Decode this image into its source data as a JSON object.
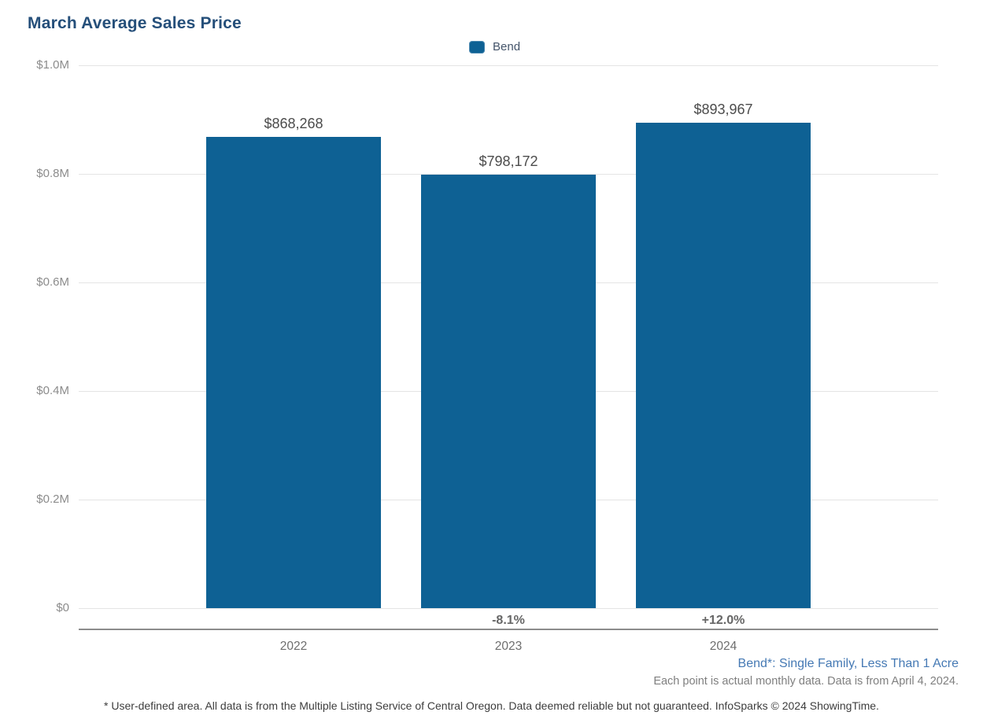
{
  "title": "March Average Sales Price",
  "legend": {
    "label": "Bend",
    "color": "#0e6194"
  },
  "chart_data": {
    "type": "bar",
    "title": "March Average Sales Price",
    "categories": [
      "2022",
      "2023",
      "2024"
    ],
    "series": [
      {
        "name": "Bend",
        "color": "#0e6194",
        "values": [
          868268,
          798172,
          893967
        ],
        "value_labels": [
          "$868,268",
          "$798,172",
          "$893,967"
        ],
        "pct_change_labels": [
          "",
          "-8.1%",
          "+12.0%"
        ]
      }
    ],
    "xlabel": "",
    "ylabel": "",
    "ylim": [
      0,
      1000000
    ],
    "yticks": [
      {
        "value": 0,
        "label": "$0"
      },
      {
        "value": 200000,
        "label": "$0.2M"
      },
      {
        "value": 400000,
        "label": "$0.4M"
      },
      {
        "value": 600000,
        "label": "$0.6M"
      },
      {
        "value": 800000,
        "label": "$0.8M"
      },
      {
        "value": 1000000,
        "label": "$1.0M"
      }
    ],
    "grid": true,
    "legend_position": "top-center"
  },
  "footnotes": {
    "series_definition": "Bend*: Single Family, Less Than 1 Acre",
    "data_note": "Each point is actual monthly data. Data is from April 4, 2024.",
    "disclaimer": "* User-defined area. All data is from the Multiple Listing Service of Central Oregon. Data deemed reliable but not guaranteed. InfoSparks © 2024 ShowingTime."
  }
}
